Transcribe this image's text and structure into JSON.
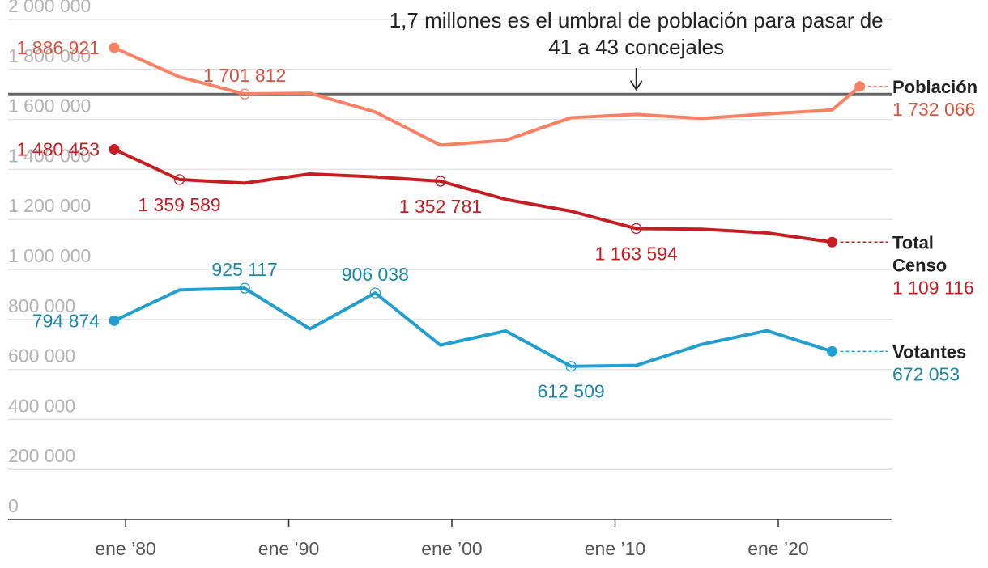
{
  "chart_data": {
    "type": "line",
    "title": "",
    "xlabel": "",
    "ylabel": "",
    "ylim": [
      0,
      2000000
    ],
    "xlim": [
      1972.8,
      2027.0
    ],
    "y_ticks": [
      {
        "value": 0,
        "label": "0"
      },
      {
        "value": 200000,
        "label": "200 000"
      },
      {
        "value": 400000,
        "label": "400 000"
      },
      {
        "value": 600000,
        "label": "600 000"
      },
      {
        "value": 800000,
        "label": "800 000"
      },
      {
        "value": 1000000,
        "label": "1 000 000"
      },
      {
        "value": 1200000,
        "label": "1 200 000"
      },
      {
        "value": 1400000,
        "label": "1 400 000"
      },
      {
        "value": 1600000,
        "label": "1 600 000"
      },
      {
        "value": 1800000,
        "label": "1 800 000"
      },
      {
        "value": 2000000,
        "label": "2 000 000"
      }
    ],
    "x_ticks": [
      {
        "value": 1980,
        "label": "ene ’80"
      },
      {
        "value": 1990,
        "label": "ene ’90"
      },
      {
        "value": 2000,
        "label": "ene ’00"
      },
      {
        "value": 2010,
        "label": "ene ’10"
      },
      {
        "value": 2020,
        "label": "ene ’20"
      }
    ],
    "reference_line": {
      "value": 1700000,
      "annotation": [
        "1,7 millones es el umbral de población para pasar de",
        "41 a 43 concejales"
      ],
      "arrow_x": 2011.3
    },
    "series": [
      {
        "name": "Población",
        "color": "#fa8064",
        "label_color": "#d9533f",
        "x": [
          1979.3,
          1983.3,
          1987.3,
          1991.3,
          1995.3,
          1999.3,
          2003.3,
          2007.3,
          2011.3,
          2015.3,
          2019.3,
          2023.3,
          2025.0
        ],
        "values": [
          1886921,
          1770000,
          1701812,
          1705000,
          1630000,
          1497000,
          1517000,
          1607000,
          1620000,
          1604000,
          1622000,
          1638000,
          1732066
        ],
        "labels": [
          {
            "index": 0,
            "text": "1 886 921",
            "pos": "left"
          },
          {
            "index": 2,
            "text": "1 701 812",
            "pos": "above"
          }
        ],
        "hollow_markers": [
          2
        ],
        "end_name": [
          "Población"
        ],
        "end_value": "1 732 066"
      },
      {
        "name": "Total Censo",
        "color": "#c41e23",
        "label_color": "#c41e23",
        "x": [
          1979.3,
          1983.3,
          1987.3,
          1991.3,
          1995.3,
          1999.3,
          2003.3,
          2007.3,
          2011.3,
          2015.3,
          2019.3,
          2023.3
        ],
        "values": [
          1480453,
          1359589,
          1345000,
          1382000,
          1370000,
          1352781,
          1280000,
          1233000,
          1163594,
          1161000,
          1146000,
          1109116
        ],
        "labels": [
          {
            "index": 0,
            "text": "1 480 453",
            "pos": "left"
          },
          {
            "index": 1,
            "text": "1 359 589",
            "pos": "below"
          },
          {
            "index": 5,
            "text": "1 352 781",
            "pos": "below"
          },
          {
            "index": 8,
            "text": "1 163 594",
            "pos": "below"
          }
        ],
        "hollow_markers": [
          1,
          5,
          8
        ],
        "end_name": [
          "Total",
          "Censo"
        ],
        "end_value": "1 109 116"
      },
      {
        "name": "Votantes",
        "color": "#239fcf",
        "label_color": "#1b87ad",
        "x": [
          1979.3,
          1983.3,
          1987.3,
          1991.3,
          1995.3,
          1999.3,
          2003.3,
          2007.3,
          2011.3,
          2015.3,
          2019.3,
          2023.3
        ],
        "values": [
          794874,
          918000,
          925117,
          762000,
          906038,
          697000,
          754000,
          612509,
          616000,
          700000,
          755000,
          672053
        ],
        "labels": [
          {
            "index": 0,
            "text": "794 874",
            "pos": "left"
          },
          {
            "index": 2,
            "text": "925 117",
            "pos": "above"
          },
          {
            "index": 4,
            "text": "906 038",
            "pos": "above"
          },
          {
            "index": 7,
            "text": "612 509",
            "pos": "below"
          }
        ],
        "hollow_markers": [
          2,
          4,
          7
        ],
        "end_name": [
          "Votantes"
        ],
        "end_value": "672 053"
      }
    ]
  }
}
